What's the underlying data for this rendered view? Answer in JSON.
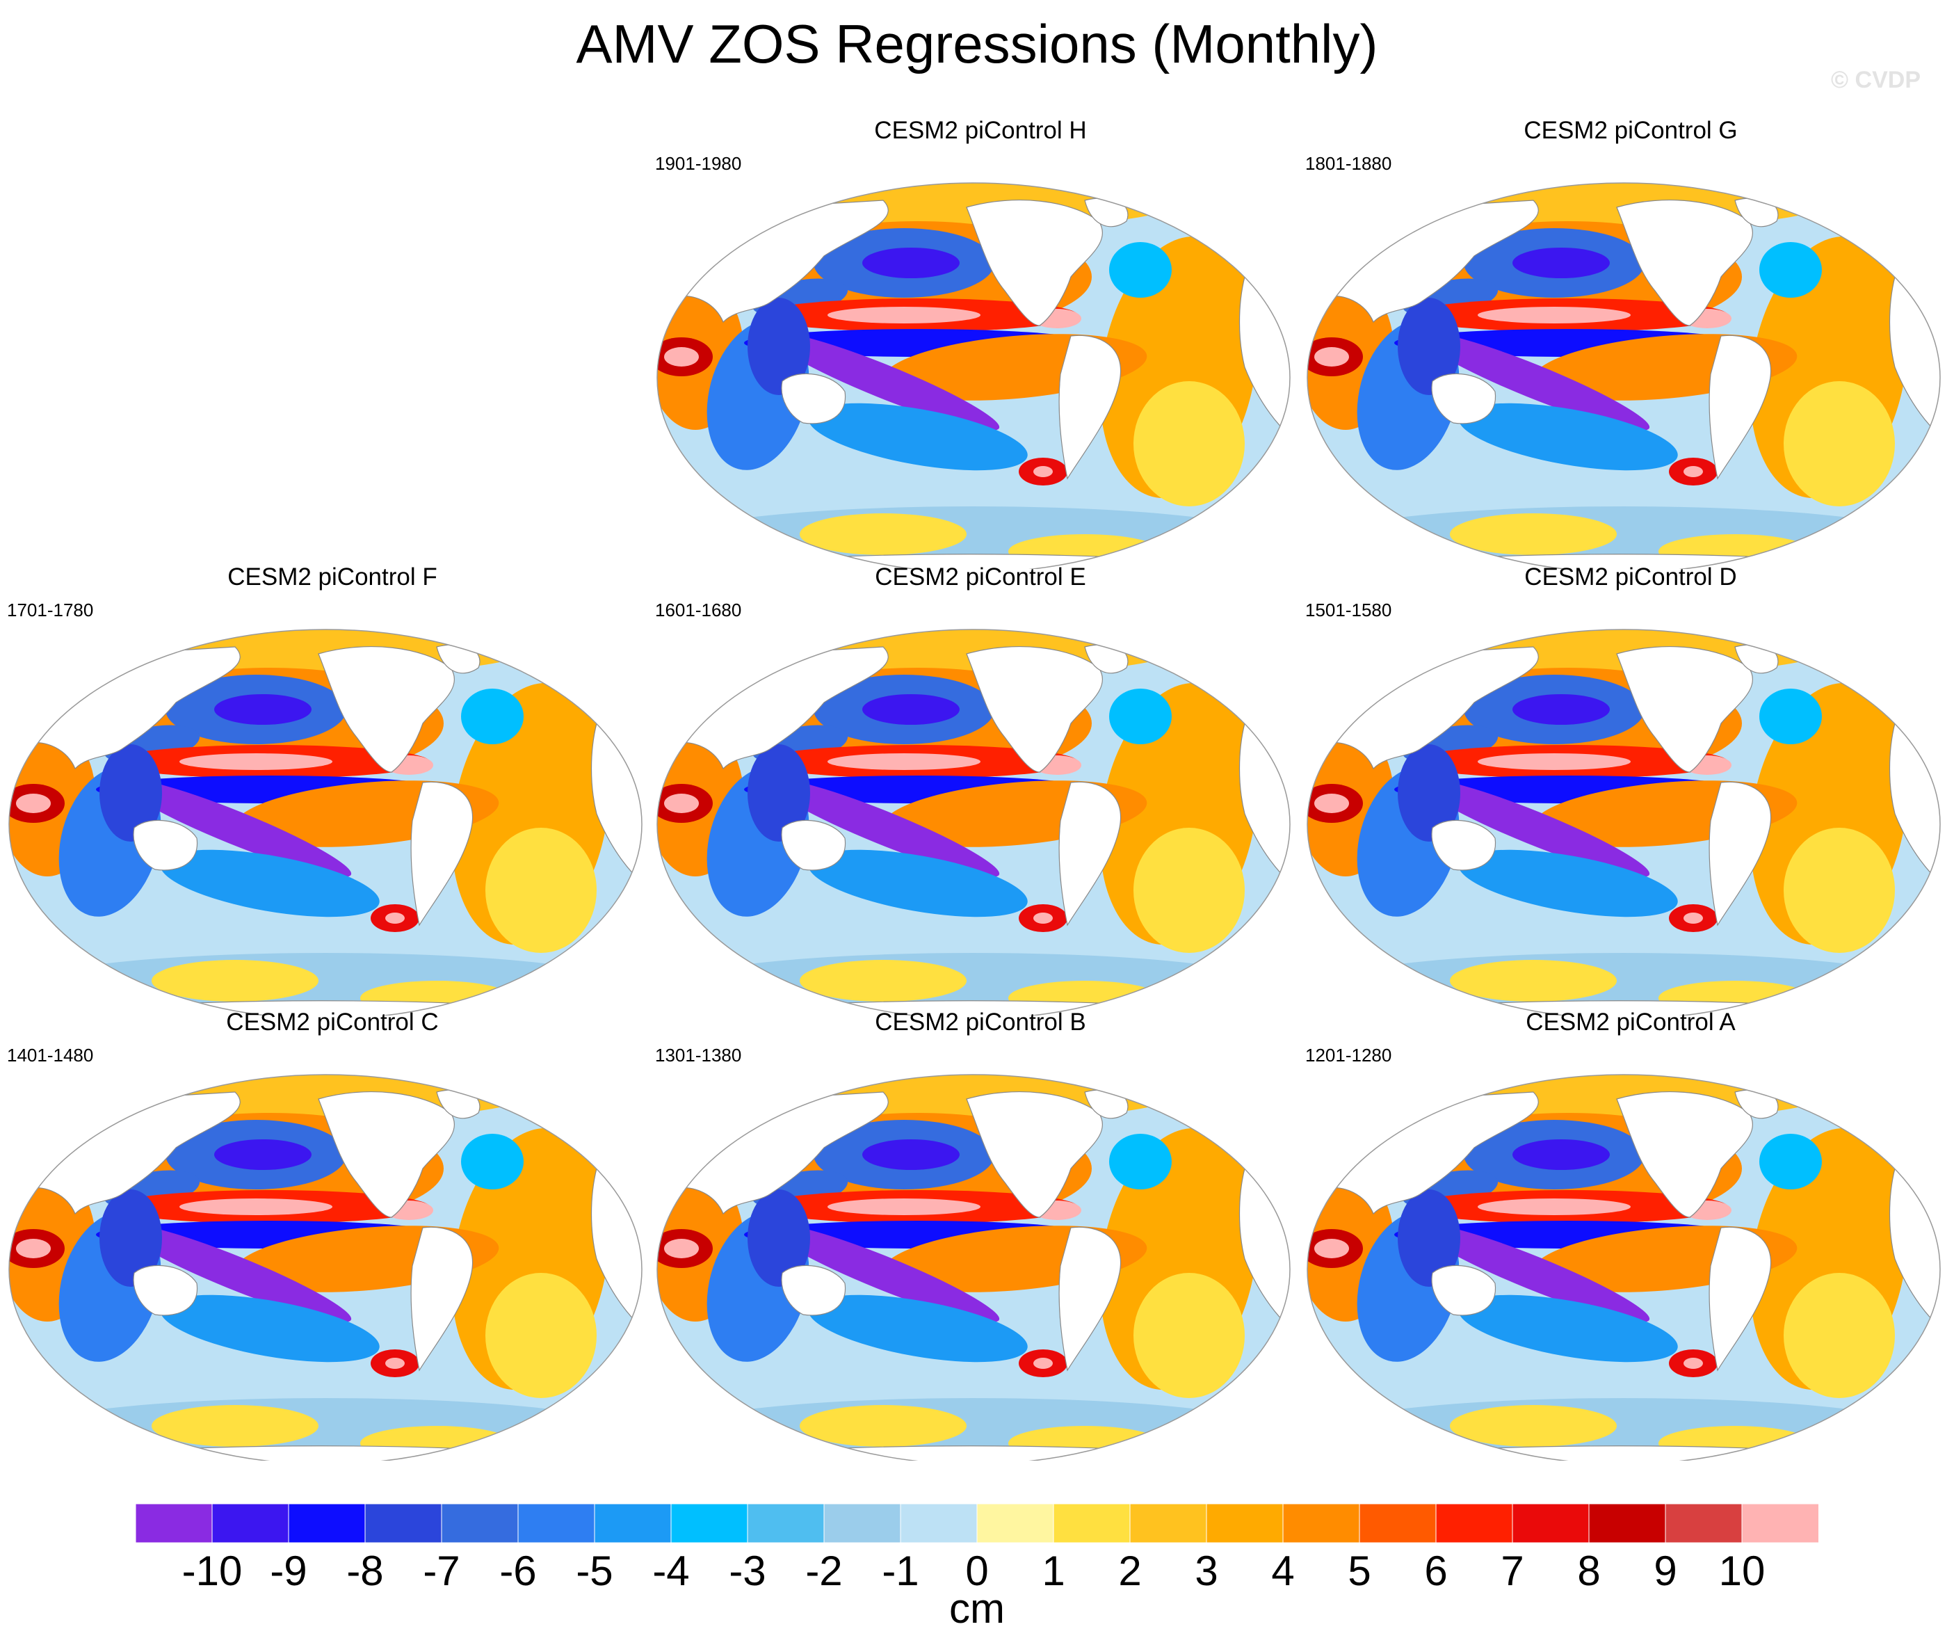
{
  "title": "AMV ZOS Regressions (Monthly)",
  "watermark": "© CVDP",
  "panels": [
    {
      "title": "CESM2 piControl H",
      "years": "1901-1980"
    },
    {
      "title": "CESM2 piControl G",
      "years": "1801-1880"
    },
    {
      "title": "CESM2 piControl F",
      "years": "1701-1780"
    },
    {
      "title": "CESM2 piControl E",
      "years": "1601-1680"
    },
    {
      "title": "CESM2 piControl D",
      "years": "1501-1580"
    },
    {
      "title": "CESM2 piControl C",
      "years": "1401-1480"
    },
    {
      "title": "CESM2 piControl B",
      "years": "1301-1380"
    },
    {
      "title": "CESM2 piControl A",
      "years": "1201-1280"
    }
  ],
  "colorbar": {
    "units": "cm",
    "labels": [
      "-10",
      "-9",
      "-8",
      "-7",
      "-6",
      "-5",
      "-4",
      "-3",
      "-2",
      "-1",
      "0",
      "1",
      "2",
      "3",
      "4",
      "5",
      "6",
      "7",
      "8",
      "9",
      "10"
    ],
    "colors": [
      "#8a2be2",
      "#3c16f0",
      "#0d0dff",
      "#2b45db",
      "#356cdf",
      "#2e7ef2",
      "#1c9af5",
      "#00bfff",
      "#4fbef0",
      "#9bcdeb",
      "#bde1f5",
      "#fff6a0",
      "#ffe040",
      "#ffc21f",
      "#ffaa00",
      "#ff8c00",
      "#ff5a00",
      "#ff2000",
      "#ea0a0a",
      "#c80000",
      "#d84040",
      "#ffb3b3"
    ]
  }
}
